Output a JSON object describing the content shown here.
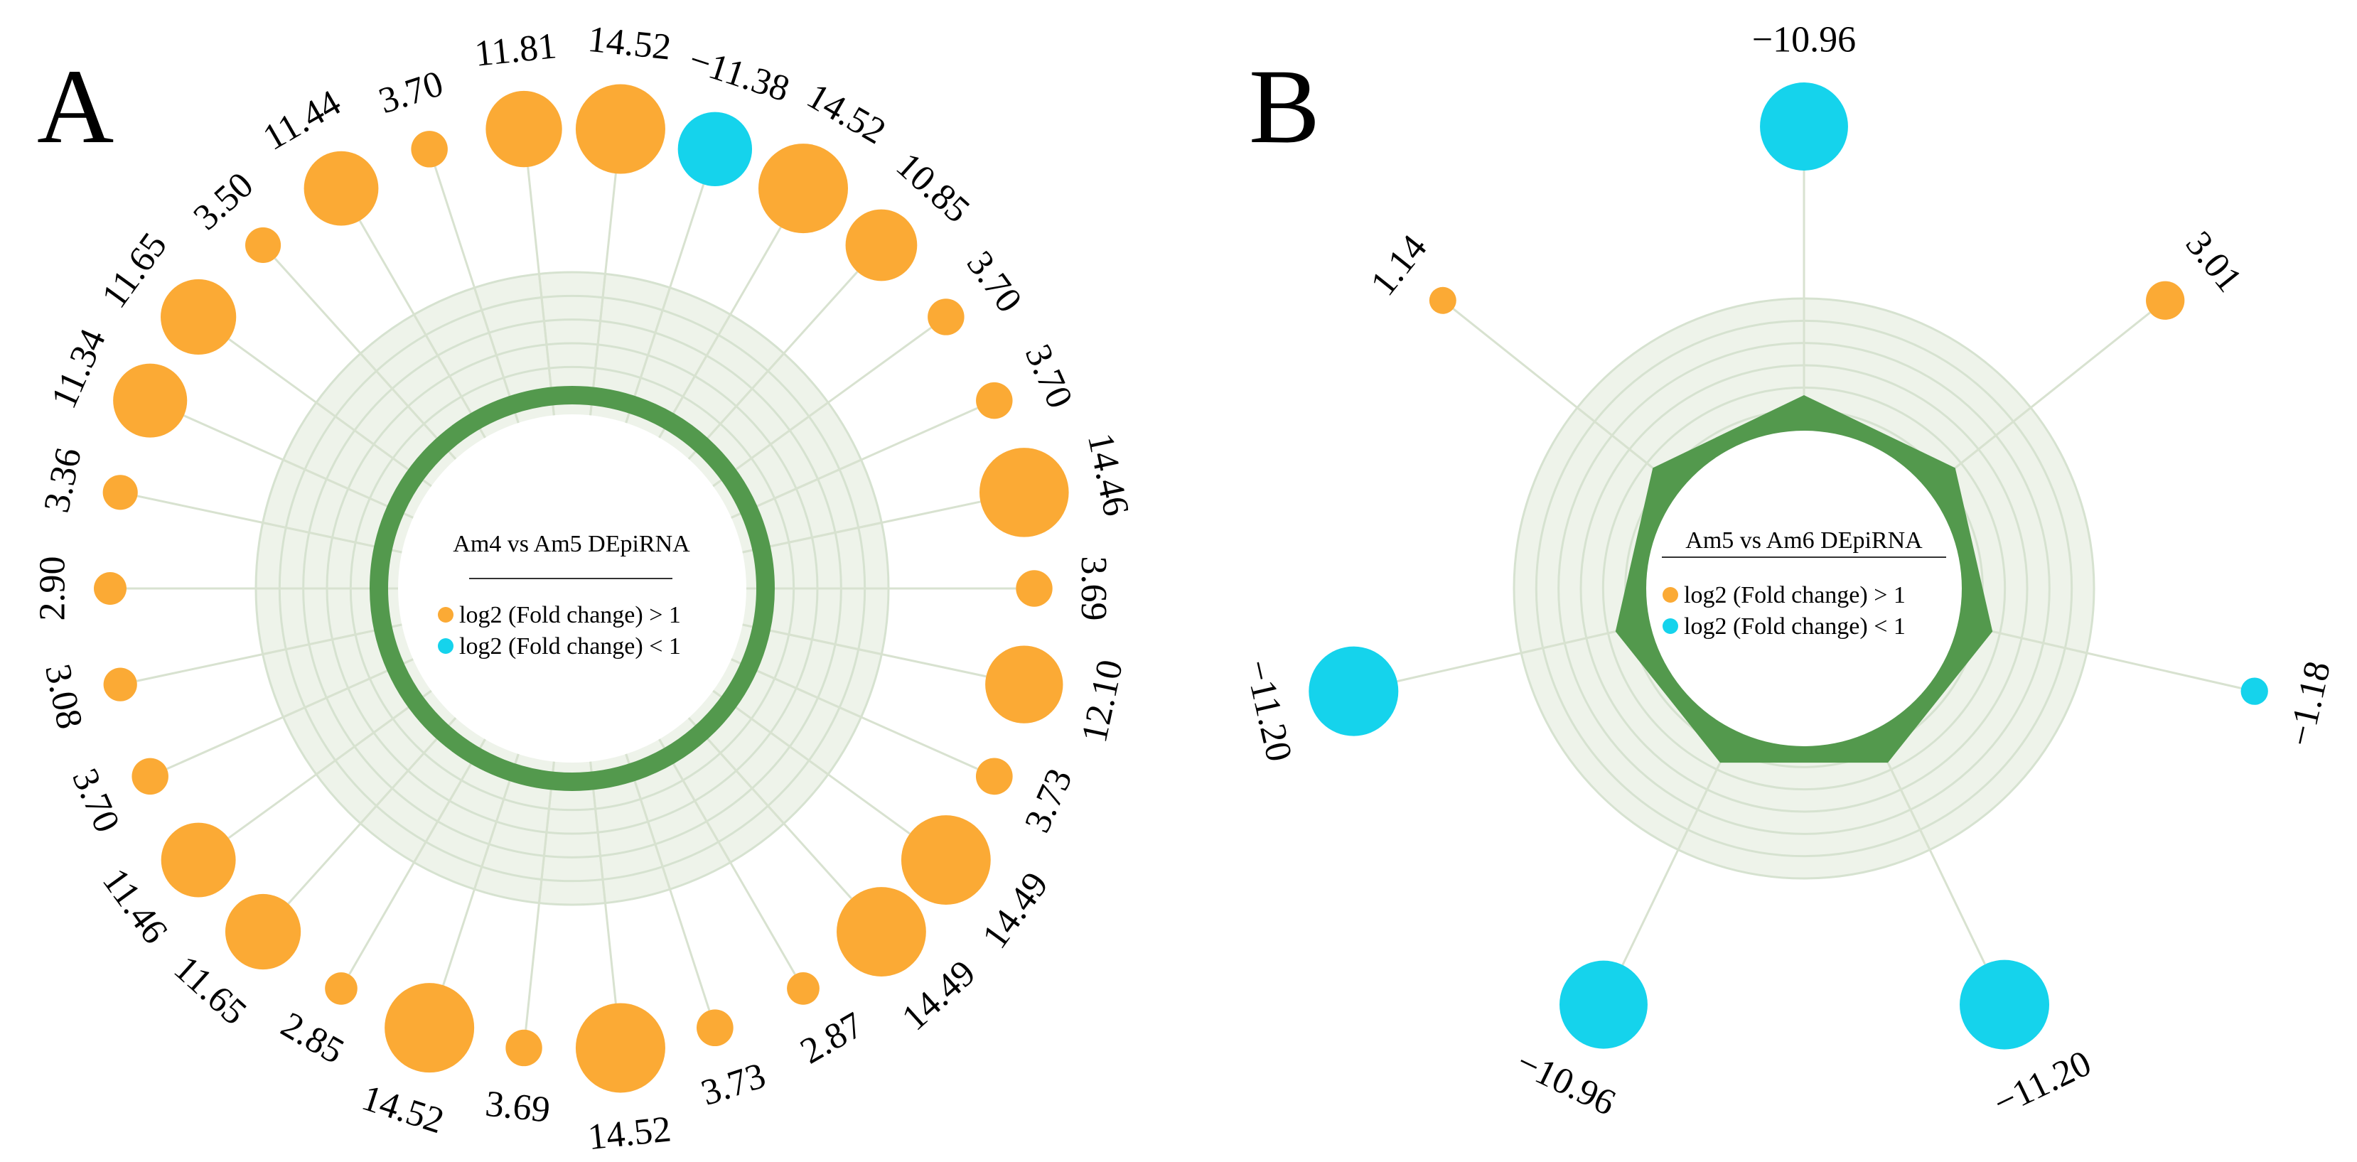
{
  "colors": {
    "up": "#FBAA35",
    "down": "#15D3EC",
    "ring": "#53994D",
    "grid_fill": "#EEF3EA",
    "grid_line": "#D6E2D0",
    "stem": "#D8E2D0"
  },
  "chart_data": [
    {
      "type": "radial-bubble",
      "panel": "A",
      "title": "Am4 vs Am5 DEpiRNA",
      "legend": [
        {
          "label": "log2 (Fold change) > 1",
          "color": "#FBAA35"
        },
        {
          "label": "log2 (Fold change) < 1",
          "color": "#15D3EC"
        }
      ],
      "values": [
        14.52,
        -11.38,
        14.52,
        10.85,
        3.7,
        3.7,
        14.46,
        3.69,
        12.1,
        3.73,
        14.49,
        14.49,
        2.87,
        3.73,
        14.52,
        3.69,
        14.52,
        2.85,
        11.65,
        11.46,
        3.7,
        3.08,
        2.9,
        3.36,
        11.34,
        11.65,
        3.5,
        11.44,
        3.7,
        11.81
      ],
      "labels": [
        "14.52",
        "−11.38",
        "14.52",
        "10.85",
        "3.70",
        "3.70",
        "14.46",
        "3.69",
        "12.10",
        "3.73",
        "14.49",
        "14.49",
        "2.87",
        "3.73",
        "14.52",
        "3.69",
        "14.52",
        "2.85",
        "11.65",
        "11.46",
        "3.70",
        "3.08",
        "2.90",
        "3.36",
        "11.34",
        "11.65",
        "3.50",
        "11.44",
        "3.70",
        "11.81"
      ]
    },
    {
      "type": "radial-bubble",
      "panel": "B",
      "title": "Am5 vs Am6 DEpiRNA",
      "legend": [
        {
          "label": "log2 (Fold change) > 1",
          "color": "#FBAA35"
        },
        {
          "label": "log2 (Fold change) < 1",
          "color": "#15D3EC"
        }
      ],
      "values": [
        -10.96,
        3.01,
        -1.18,
        -11.2,
        -10.96,
        -11.2,
        1.14
      ],
      "labels": [
        "−10.96",
        "3.01",
        "−1.18",
        "−11.20",
        "−10.96",
        "−11.20",
        "1.14"
      ]
    }
  ]
}
